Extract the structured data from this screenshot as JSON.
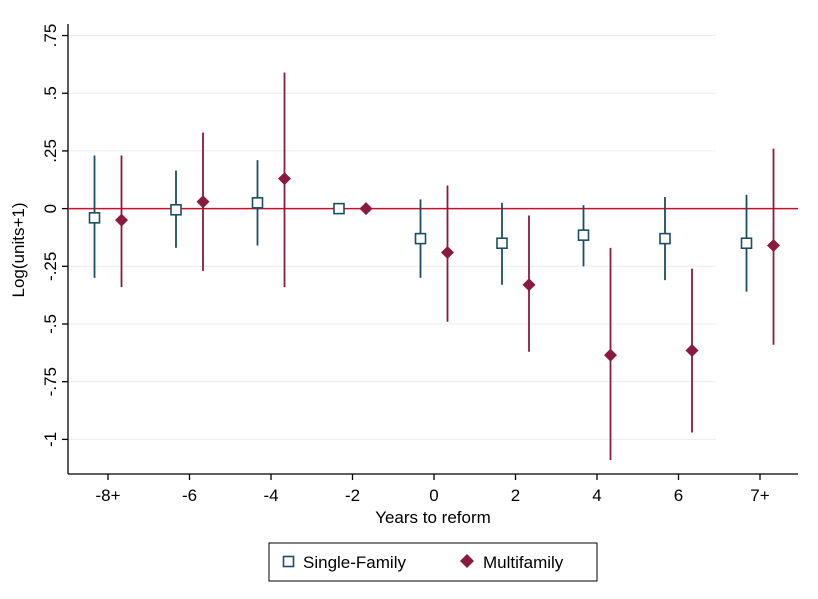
{
  "chart_data": {
    "type": "scatter",
    "title": "",
    "xlabel": "Years to reform",
    "ylabel": "Log(units+1)",
    "categories": [
      "-8+",
      "-6",
      "-4",
      "-2",
      "0",
      "2",
      "4",
      "6",
      "7+"
    ],
    "ylim": [
      -1.15,
      0.8
    ],
    "yticks": [
      -1,
      -0.75,
      -0.5,
      -0.25,
      0,
      0.25,
      0.5,
      0.75
    ],
    "ytick_labels": [
      "-1",
      "-.75",
      "-.5",
      "-.25",
      "0",
      ".25",
      ".5",
      ".75"
    ],
    "reference_line": 0,
    "grid": "horizontal",
    "legend_position": "bottom",
    "colors": {
      "single_family": "#1a4f63",
      "multifamily": "#8b1a3f",
      "zero_line": "#c8102e",
      "grid": "#ececec"
    },
    "series": [
      {
        "name": "Single-Family",
        "marker": "hollow-square",
        "values": [
          -0.04,
          -0.005,
          0.025,
          0.0,
          -0.13,
          -0.15,
          -0.115,
          -0.13,
          -0.15
        ],
        "ci_low": [
          -0.3,
          -0.17,
          -0.16,
          null,
          -0.3,
          -0.33,
          -0.25,
          -0.31,
          -0.36
        ],
        "ci_high": [
          0.23,
          0.165,
          0.21,
          null,
          0.04,
          0.025,
          0.015,
          0.05,
          0.06
        ]
      },
      {
        "name": "Multifamily",
        "marker": "filled-diamond",
        "values": [
          -0.05,
          0.03,
          0.13,
          0.0,
          -0.19,
          -0.33,
          -0.635,
          -0.615,
          -0.16
        ],
        "ci_low": [
          -0.34,
          -0.27,
          -0.34,
          null,
          -0.49,
          -0.62,
          -1.09,
          -0.97,
          -0.59
        ],
        "ci_high": [
          0.23,
          0.33,
          0.59,
          null,
          0.1,
          -0.03,
          -0.17,
          -0.26,
          0.26
        ]
      }
    ]
  }
}
